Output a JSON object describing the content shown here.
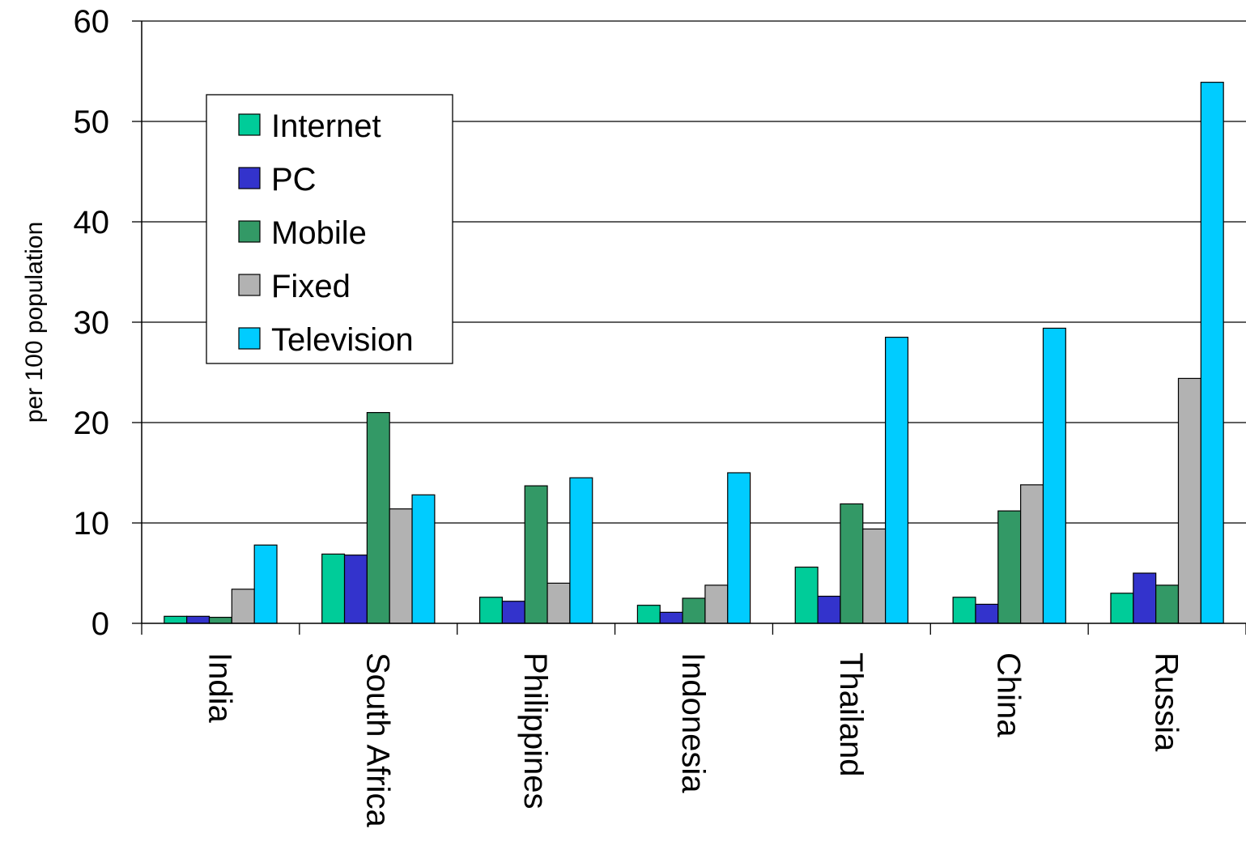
{
  "chart_data": {
    "type": "bar",
    "title": "",
    "xlabel": "",
    "ylabel": "per 100 population",
    "ylim": [
      0,
      60
    ],
    "yticks": [
      0,
      10,
      20,
      30,
      40,
      50,
      60
    ],
    "grid": true,
    "legend_position": "top-left",
    "categories": [
      "India",
      "South Africa",
      "Philippines",
      "Indonesia",
      "Thailand",
      "China",
      "Russia"
    ],
    "series": [
      {
        "name": "Internet",
        "color": "#00cc99",
        "values": [
          0.7,
          6.9,
          2.6,
          1.8,
          5.6,
          2.6,
          3.0
        ]
      },
      {
        "name": "PC",
        "color": "#3333cc",
        "values": [
          0.7,
          6.8,
          2.2,
          1.1,
          2.7,
          1.9,
          5.0
        ]
      },
      {
        "name": "Mobile",
        "color": "#339966",
        "values": [
          0.6,
          21.0,
          13.7,
          2.5,
          11.9,
          11.2,
          3.8
        ]
      },
      {
        "name": "Fixed",
        "color": "#b2b2b2",
        "values": [
          3.4,
          11.4,
          4.0,
          3.8,
          9.4,
          13.8,
          24.4
        ]
      },
      {
        "name": "Television",
        "color": "#00ccff",
        "values": [
          7.8,
          12.8,
          14.5,
          15.0,
          28.5,
          29.4,
          53.9
        ]
      }
    ]
  }
}
